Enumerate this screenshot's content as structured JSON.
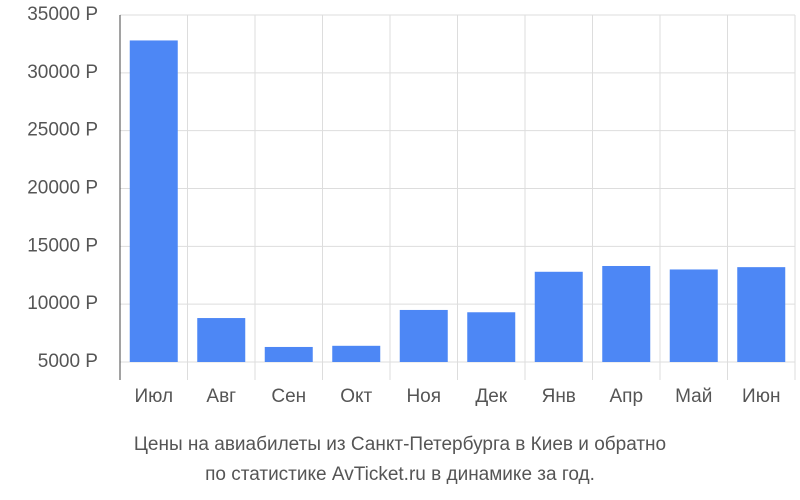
{
  "chart_data": {
    "type": "bar",
    "title": "Цены на авиабилеты из Санкт-Петербурга в Киев и обратно",
    "subtitle": "по статистике AvTicket.ru в динамике за год.",
    "categories": [
      "Июл",
      "Авг",
      "Сен",
      "Окт",
      "Ноя",
      "Дек",
      "Янв",
      "Апр",
      "Май",
      "Июн"
    ],
    "values": [
      32800,
      8800,
      6300,
      6400,
      9500,
      9300,
      12800,
      13300,
      13000,
      13200
    ],
    "color": "#4d87f5",
    "ylim": [
      5000,
      35000
    ],
    "yticks": [
      {
        "value": 5000,
        "label": "5000 Р"
      },
      {
        "value": 10000,
        "label": "10000 Р"
      },
      {
        "value": 15000,
        "label": "15000 Р"
      },
      {
        "value": 20000,
        "label": "20000 Р"
      },
      {
        "value": 25000,
        "label": "25000 Р"
      },
      {
        "value": 30000,
        "label": "30000 Р"
      },
      {
        "value": 35000,
        "label": "35000 Р"
      }
    ],
    "grid": true
  }
}
